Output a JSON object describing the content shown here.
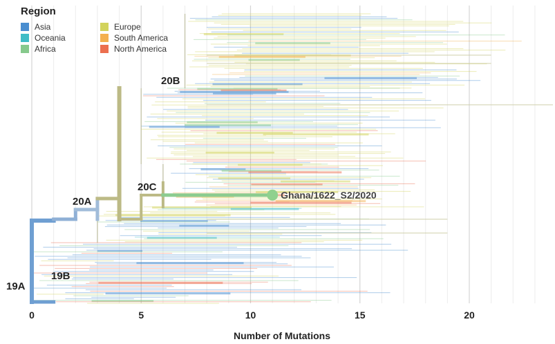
{
  "legend": {
    "title": "Region",
    "items": [
      {
        "label": "Asia",
        "color": "#4a8ed0"
      },
      {
        "label": "Oceania",
        "color": "#3fbcc6"
      },
      {
        "label": "Africa",
        "color": "#86c98c"
      },
      {
        "label": "Europe",
        "color": "#d2d35c"
      },
      {
        "label": "South America",
        "color": "#f4b04e"
      },
      {
        "label": "North America",
        "color": "#ec6f4f"
      }
    ]
  },
  "chart_data": {
    "type": "tree",
    "xlabel": "Number of Mutations",
    "xlim": [
      0,
      24
    ],
    "xticks": [
      0,
      5,
      10,
      15,
      20
    ],
    "grid": true,
    "clade_labels": [
      {
        "label": "19A",
        "x": 0
      },
      {
        "label": "19B",
        "x": 1
      },
      {
        "label": "20A",
        "x": 2
      },
      {
        "label": "20B",
        "x": 5.5
      },
      {
        "label": "20C",
        "x": 4.9
      }
    ],
    "highlight": {
      "label": "Ghana/1622_S2/2020",
      "x": 11,
      "region": "Africa"
    }
  }
}
